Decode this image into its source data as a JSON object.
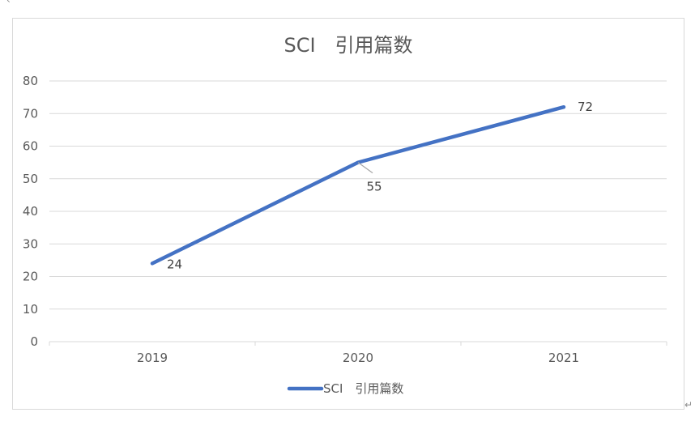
{
  "chart_data": {
    "type": "line",
    "title": "SCI　引用篇数",
    "xlabel": "",
    "ylabel": "",
    "categories": [
      "2019",
      "2020",
      "2021"
    ],
    "series": [
      {
        "name": "SCI　引用篇数",
        "values": [
          24,
          55,
          72
        ],
        "color": "#4472c4"
      }
    ],
    "data_labels": [
      "24",
      "55",
      "72"
    ],
    "ylim": [
      0,
      80
    ],
    "yticks": [
      "0",
      "10",
      "20",
      "30",
      "40",
      "50",
      "60",
      "70",
      "80"
    ],
    "grid": true,
    "legend_position": "bottom"
  },
  "paragraph_mark": "↵",
  "corner_glyph": "‹"
}
